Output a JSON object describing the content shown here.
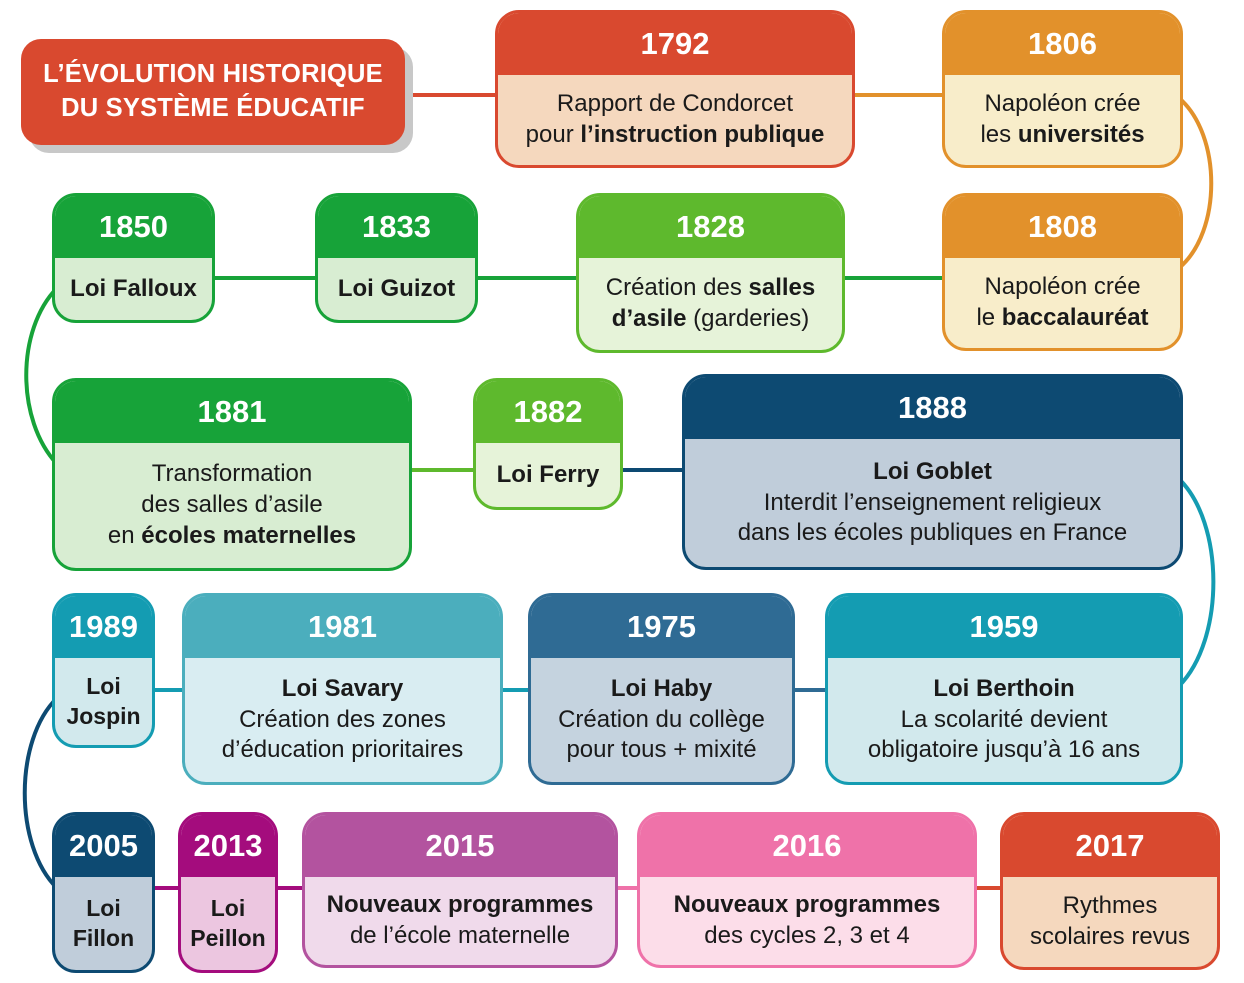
{
  "title": {
    "line1": "L’ÉVOLUTION HISTORIQUE",
    "line2": "DU SYSTÈME ÉDUCATIF"
  },
  "colors": {
    "red": "#D9492F",
    "redBody": "#F5D8BE",
    "orange": "#E2912B",
    "orangeBody": "#F8EDCA",
    "green": "#17A339",
    "greenBody": "#D8EDD2",
    "lightGreen": "#5EB92D",
    "lightGreenBody": "#E6F3D9",
    "navy": "#0D4A72",
    "navyBody": "#C0CDDA",
    "teal": "#149CB2",
    "tealBody": "#D2E9ED",
    "teal2": "#4BAEBD",
    "teal2Body": "#D9EDF2",
    "steel": "#2F6B94",
    "steelBody": "#C5D3DF",
    "magenta": "#A40C7D",
    "magentaBody": "#ECC6E0",
    "plum": "#B3539F",
    "plumBody": "#F0DAEB",
    "pink": "#EF72A9",
    "pinkBody": "#FCDDE9",
    "titleShadow": "#C8C8C8",
    "bodyText": "#1A1A1A"
  },
  "cards": [
    {
      "id": "1792",
      "year": "1792",
      "color": "red",
      "body": "redBody",
      "lines": [
        [
          {
            "t": "Rapport de Condorcet"
          }
        ],
        [
          {
            "t": "pour "
          },
          {
            "t": "l’instruction publique",
            "b": true
          }
        ]
      ]
    },
    {
      "id": "1806",
      "year": "1806",
      "color": "orange",
      "body": "orangeBody",
      "lines": [
        [
          {
            "t": "Napoléon crée"
          }
        ],
        [
          {
            "t": "les "
          },
          {
            "t": "universités",
            "b": true
          }
        ]
      ]
    },
    {
      "id": "1850",
      "year": "1850",
      "color": "green",
      "body": "greenBody",
      "lines": [
        [
          {
            "t": "Loi Falloux",
            "b": true
          }
        ]
      ]
    },
    {
      "id": "1833",
      "year": "1833",
      "color": "green",
      "body": "greenBody",
      "lines": [
        [
          {
            "t": "Loi Guizot",
            "b": true
          }
        ]
      ]
    },
    {
      "id": "1828",
      "year": "1828",
      "color": "lightGreen",
      "body": "lightGreenBody",
      "lines": [
        [
          {
            "t": "Création des "
          },
          {
            "t": "salles",
            "b": true
          }
        ],
        [
          {
            "t": "d’asile",
            "b": true
          },
          {
            "t": " (garderies)"
          }
        ]
      ]
    },
    {
      "id": "1808",
      "year": "1808",
      "color": "orange",
      "body": "orangeBody",
      "lines": [
        [
          {
            "t": "Napoléon crée"
          }
        ],
        [
          {
            "t": "le "
          },
          {
            "t": "baccalauréat",
            "b": true
          }
        ]
      ]
    },
    {
      "id": "1881",
      "year": "1881",
      "color": "green",
      "body": "greenBody",
      "lines": [
        [
          {
            "t": "Transformation"
          }
        ],
        [
          {
            "t": "des salles d’asile"
          }
        ],
        [
          {
            "t": "en "
          },
          {
            "t": "écoles maternelles",
            "b": true
          }
        ]
      ]
    },
    {
      "id": "1882",
      "year": "1882",
      "color": "lightGreen",
      "body": "lightGreenBody",
      "lines": [
        [
          {
            "t": "Loi Ferry",
            "b": true
          }
        ]
      ]
    },
    {
      "id": "1888",
      "year": "1888",
      "color": "navy",
      "body": "navyBody",
      "lines": [
        [
          {
            "t": "Loi Goblet",
            "b": true
          }
        ],
        [
          {
            "t": "Interdit l’enseignement religieux"
          }
        ],
        [
          {
            "t": "dans les écoles publiques en France"
          }
        ]
      ]
    },
    {
      "id": "1989",
      "year": "1989",
      "color": "teal",
      "body": "tealBody",
      "lines": [
        [
          {
            "t": "Loi",
            "b": true
          }
        ],
        [
          {
            "t": "Jospin",
            "b": true
          }
        ]
      ]
    },
    {
      "id": "1981",
      "year": "1981",
      "color": "teal2",
      "body": "teal2Body",
      "lines": [
        [
          {
            "t": "Loi Savary",
            "b": true
          }
        ],
        [
          {
            "t": "Création des zones"
          }
        ],
        [
          {
            "t": "d’éducation prioritaires"
          }
        ]
      ]
    },
    {
      "id": "1975",
      "year": "1975",
      "color": "steel",
      "body": "steelBody",
      "lines": [
        [
          {
            "t": "Loi Haby",
            "b": true
          }
        ],
        [
          {
            "t": "Création du collège"
          }
        ],
        [
          {
            "t": "pour tous + mixité"
          }
        ]
      ]
    },
    {
      "id": "1959",
      "year": "1959",
      "color": "teal",
      "body": "tealBody",
      "lines": [
        [
          {
            "t": "Loi Berthoin",
            "b": true
          }
        ],
        [
          {
            "t": "La scolarité devient"
          }
        ],
        [
          {
            "t": "obligatoire jusqu’à 16 ans"
          }
        ]
      ]
    },
    {
      "id": "2005",
      "year": "2005",
      "color": "navy",
      "body": "navyBody",
      "lines": [
        [
          {
            "t": "Loi",
            "b": true
          }
        ],
        [
          {
            "t": "Fillon",
            "b": true
          }
        ]
      ]
    },
    {
      "id": "2013",
      "year": "2013",
      "color": "magenta",
      "body": "magentaBody",
      "lines": [
        [
          {
            "t": "Loi",
            "b": true
          }
        ],
        [
          {
            "t": "Peillon",
            "b": true
          }
        ]
      ]
    },
    {
      "id": "2015",
      "year": "2015",
      "color": "plum",
      "body": "plumBody",
      "lines": [
        [
          {
            "t": "Nouveaux programmes",
            "b": true
          }
        ],
        [
          {
            "t": "de l’école maternelle"
          }
        ]
      ]
    },
    {
      "id": "2016",
      "year": "2016",
      "color": "pink",
      "body": "pinkBody",
      "lines": [
        [
          {
            "t": "Nouveaux programmes",
            "b": true
          }
        ],
        [
          {
            "t": "des cycles 2, 3 et 4"
          }
        ]
      ]
    },
    {
      "id": "2017",
      "year": "2017",
      "color": "red",
      "body": "redBody",
      "lines": [
        [
          {
            "t": "Rythmes"
          }
        ],
        [
          {
            "t": "scolaires revus"
          }
        ]
      ]
    }
  ],
  "connectors": [
    {
      "from": "title",
      "to": "1792",
      "color": "red"
    },
    {
      "from": "1792",
      "to": "1806",
      "color": "orange"
    },
    {
      "from": "1806",
      "to": "1808",
      "color": "orange"
    },
    {
      "from": "1808",
      "to": "1828",
      "color": "green"
    },
    {
      "from": "1828",
      "to": "1833",
      "color": "green"
    },
    {
      "from": "1833",
      "to": "1850",
      "color": "green"
    },
    {
      "from": "1850",
      "to": "1881",
      "color": "green"
    },
    {
      "from": "1881",
      "to": "1882",
      "color": "lightGreen"
    },
    {
      "from": "1882",
      "to": "1888",
      "color": "navy"
    },
    {
      "from": "1888",
      "to": "1959",
      "color": "teal"
    },
    {
      "from": "1959",
      "to": "1975",
      "color": "steel"
    },
    {
      "from": "1975",
      "to": "1981",
      "color": "teal"
    },
    {
      "from": "1981",
      "to": "1989",
      "color": "teal"
    },
    {
      "from": "1989",
      "to": "2005",
      "color": "navy"
    },
    {
      "from": "2005",
      "to": "2013",
      "color": "magenta"
    },
    {
      "from": "2013",
      "to": "2015",
      "color": "magenta"
    },
    {
      "from": "2015",
      "to": "2016",
      "color": "pink"
    },
    {
      "from": "2016",
      "to": "2017",
      "color": "red"
    }
  ]
}
